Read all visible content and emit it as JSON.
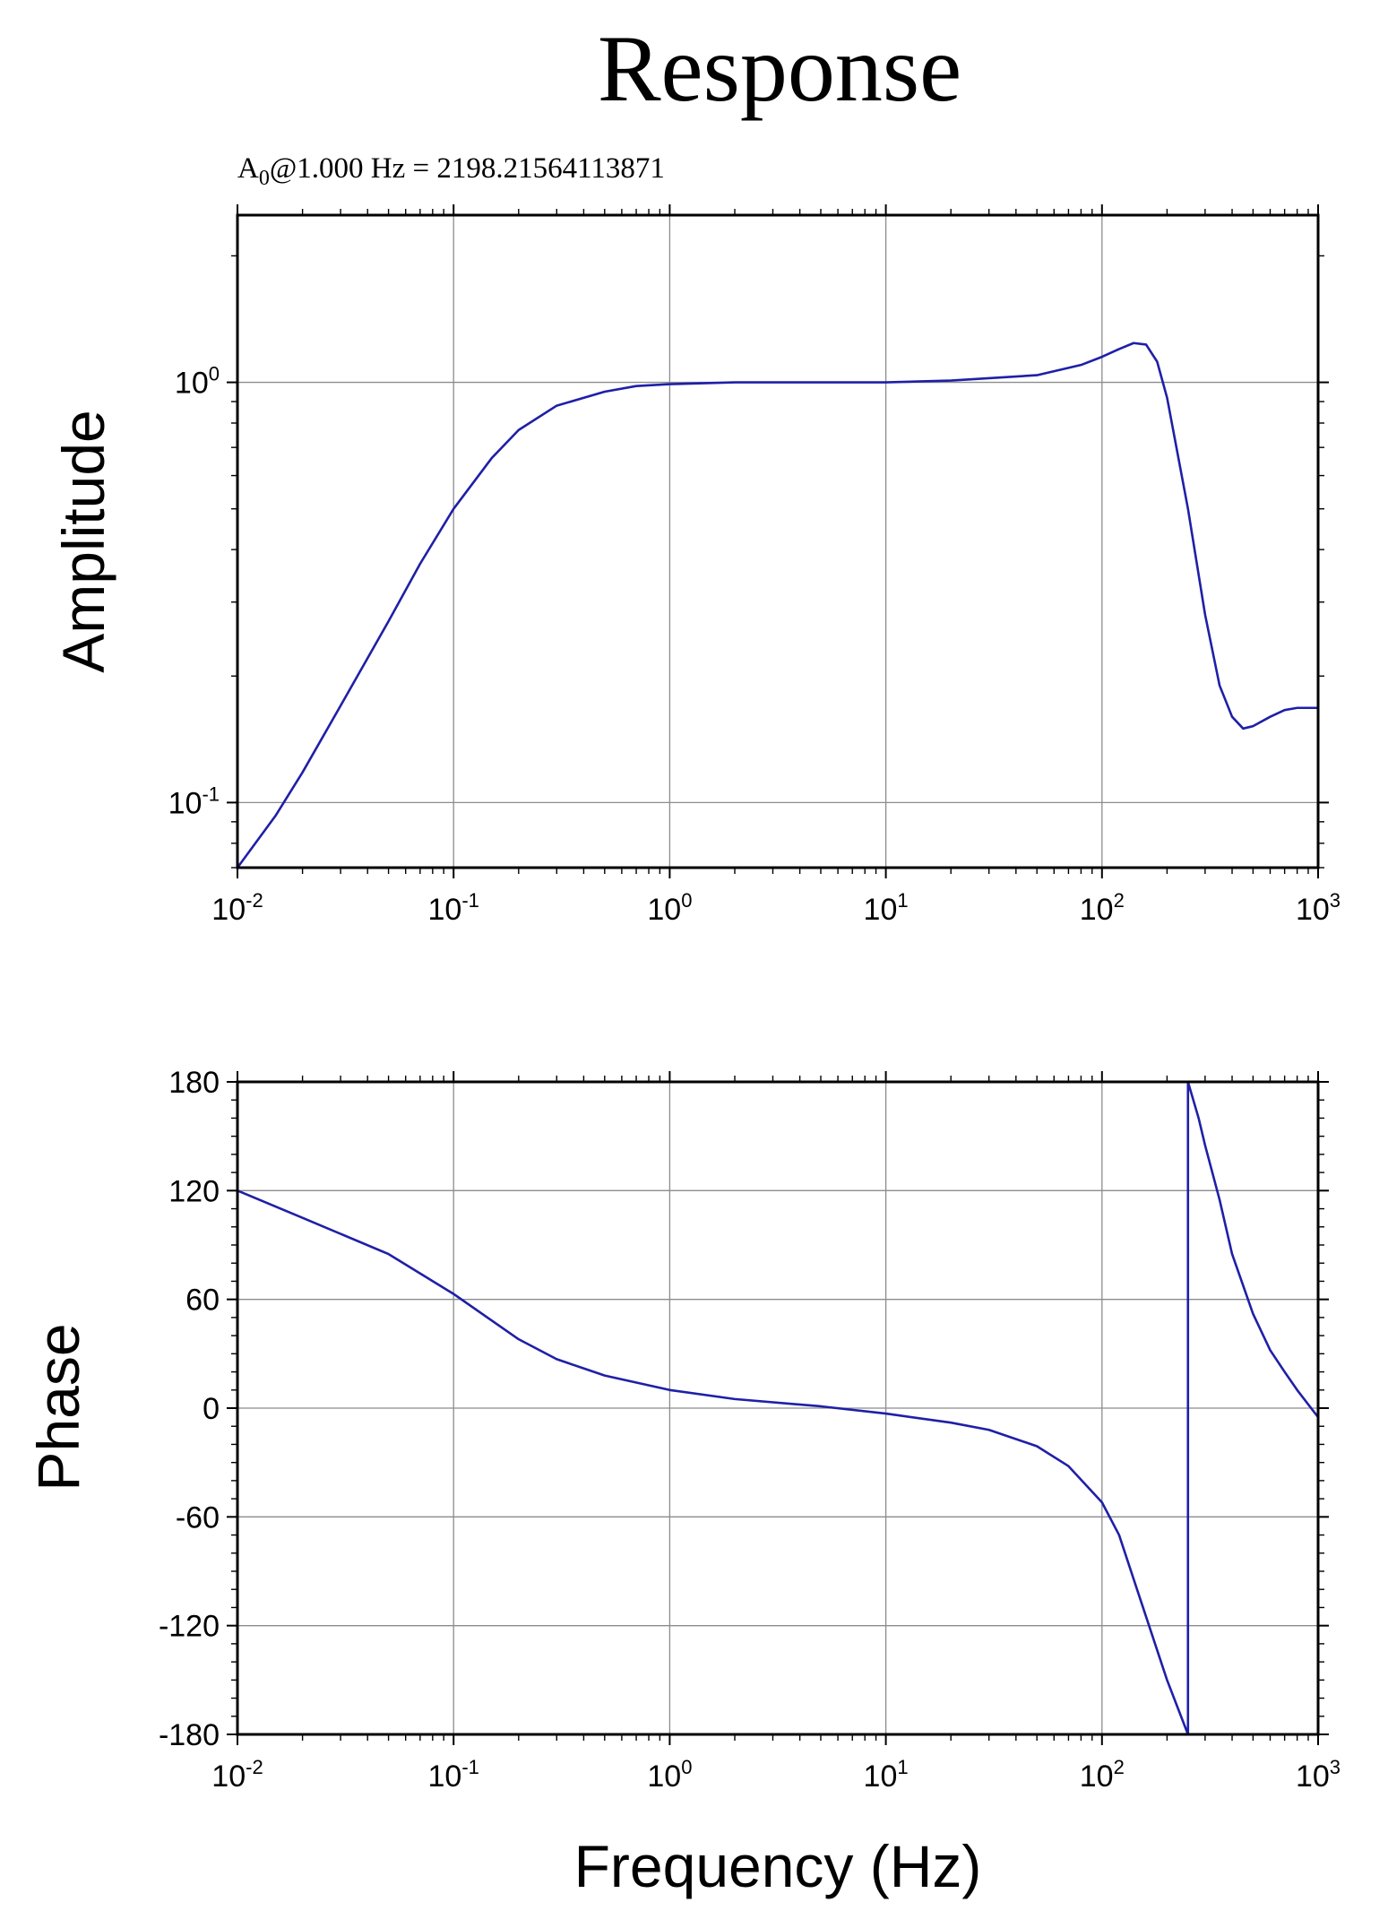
{
  "chart_data": [
    {
      "type": "line",
      "title": "Response",
      "subtitle": {
        "base": "A",
        "sub": "0",
        "rest": "@1.000 Hz = 2198.21564113871"
      },
      "xlabel": "",
      "ylabel": "Amplitude",
      "xscale": "log",
      "yscale": "log",
      "xlim": [
        0.01,
        1000
      ],
      "ylim": [
        0.07,
        2.5
      ],
      "xticks": [
        {
          "value": 0.01,
          "base": "10",
          "exp": "-2"
        },
        {
          "value": 0.1,
          "base": "10",
          "exp": "-1"
        },
        {
          "value": 1,
          "base": "10",
          "exp": "0"
        },
        {
          "value": 10,
          "base": "10",
          "exp": "1"
        },
        {
          "value": 100,
          "base": "10",
          "exp": "2"
        },
        {
          "value": 1000,
          "base": "10",
          "exp": "3"
        }
      ],
      "yticks": [
        {
          "value": 0.1,
          "base": "10",
          "exp": "-1"
        },
        {
          "value": 1,
          "base": "10",
          "exp": "0"
        }
      ],
      "grid": true,
      "color": "#1f1fa8",
      "series": [
        {
          "x": [
            0.01,
            0.015,
            0.02,
            0.03,
            0.05,
            0.07,
            0.1,
            0.15,
            0.2,
            0.3,
            0.5,
            0.7,
            1,
            2,
            5,
            10,
            20,
            50,
            80,
            100,
            120,
            140,
            160,
            180,
            200,
            250,
            300,
            350,
            400,
            450,
            500,
            600,
            700,
            800,
            1000
          ],
          "y": [
            0.07,
            0.093,
            0.118,
            0.17,
            0.27,
            0.37,
            0.5,
            0.66,
            0.77,
            0.88,
            0.95,
            0.98,
            0.99,
            1.0,
            1.0,
            1.0,
            1.01,
            1.04,
            1.1,
            1.15,
            1.2,
            1.24,
            1.23,
            1.12,
            0.92,
            0.5,
            0.28,
            0.19,
            0.16,
            0.15,
            0.152,
            0.16,
            0.166,
            0.168,
            0.168
          ]
        }
      ]
    },
    {
      "type": "line",
      "title": "",
      "xlabel": "Frequency (Hz)",
      "ylabel": "Phase",
      "xscale": "log",
      "yscale": "linear",
      "xlim": [
        0.01,
        1000
      ],
      "ylim": [
        -180,
        180
      ],
      "xticks": [
        {
          "value": 0.01,
          "base": "10",
          "exp": "-2"
        },
        {
          "value": 0.1,
          "base": "10",
          "exp": "-1"
        },
        {
          "value": 1,
          "base": "10",
          "exp": "0"
        },
        {
          "value": 10,
          "base": "10",
          "exp": "1"
        },
        {
          "value": 100,
          "base": "10",
          "exp": "2"
        },
        {
          "value": 1000,
          "base": "10",
          "exp": "3"
        }
      ],
      "yticks": [
        {
          "value": 180,
          "label": "180"
        },
        {
          "value": 120,
          "label": "120"
        },
        {
          "value": 60,
          "label": "60"
        },
        {
          "value": 0,
          "label": "0"
        },
        {
          "value": -60,
          "label": "-60"
        },
        {
          "value": -120,
          "label": "-120"
        },
        {
          "value": -180,
          "label": "-180"
        }
      ],
      "grid": true,
      "color": "#1f1fa8",
      "series": [
        {
          "x": [
            0.01,
            0.02,
            0.05,
            0.1,
            0.2,
            0.3,
            0.5,
            1,
            2,
            5,
            10,
            20,
            30,
            50,
            70,
            100,
            120,
            150,
            200,
            250,
            250,
            280,
            300,
            350,
            400,
            500,
            600,
            700,
            800,
            1000
          ],
          "y": [
            120,
            105,
            85,
            63,
            38,
            27,
            18,
            10,
            5,
            1,
            -3,
            -8,
            -12,
            -21,
            -32,
            -52,
            -70,
            -105,
            -150,
            -180,
            180,
            160,
            145,
            115,
            85,
            52,
            32,
            20,
            10,
            -5
          ]
        }
      ]
    }
  ]
}
